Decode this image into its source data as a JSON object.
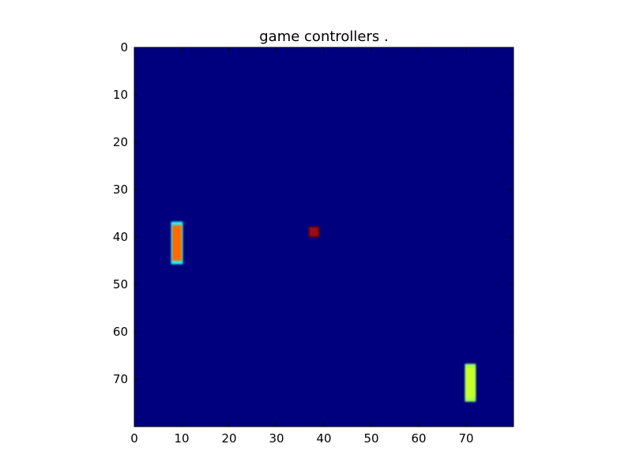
{
  "title": "game controllers .",
  "frame": {
    "width": 80,
    "height": 80,
    "background_color": "#00007f"
  },
  "axes": {
    "xticks": [
      0,
      10,
      20,
      30,
      40,
      50,
      60,
      70
    ],
    "yticks": [
      0,
      10,
      20,
      30,
      40,
      50,
      60,
      70
    ]
  },
  "game_objects": [
    {
      "kind": "left-paddle",
      "x": 8,
      "y": 37,
      "w": 2,
      "h": 8.5,
      "fill_color": "#ff6a00",
      "edge_color": "#2af0e6"
    },
    {
      "kind": "ball",
      "x": 37,
      "y": 38,
      "w": 1.8,
      "h": 1.8,
      "fill_color": "#9a0a12",
      "edge_color": "#6a0000"
    },
    {
      "kind": "right-paddle",
      "x": 70,
      "y": 67,
      "w": 1.8,
      "h": 7.5,
      "fill_color": "#c8ff28",
      "edge_color": "#9bff60"
    }
  ]
}
